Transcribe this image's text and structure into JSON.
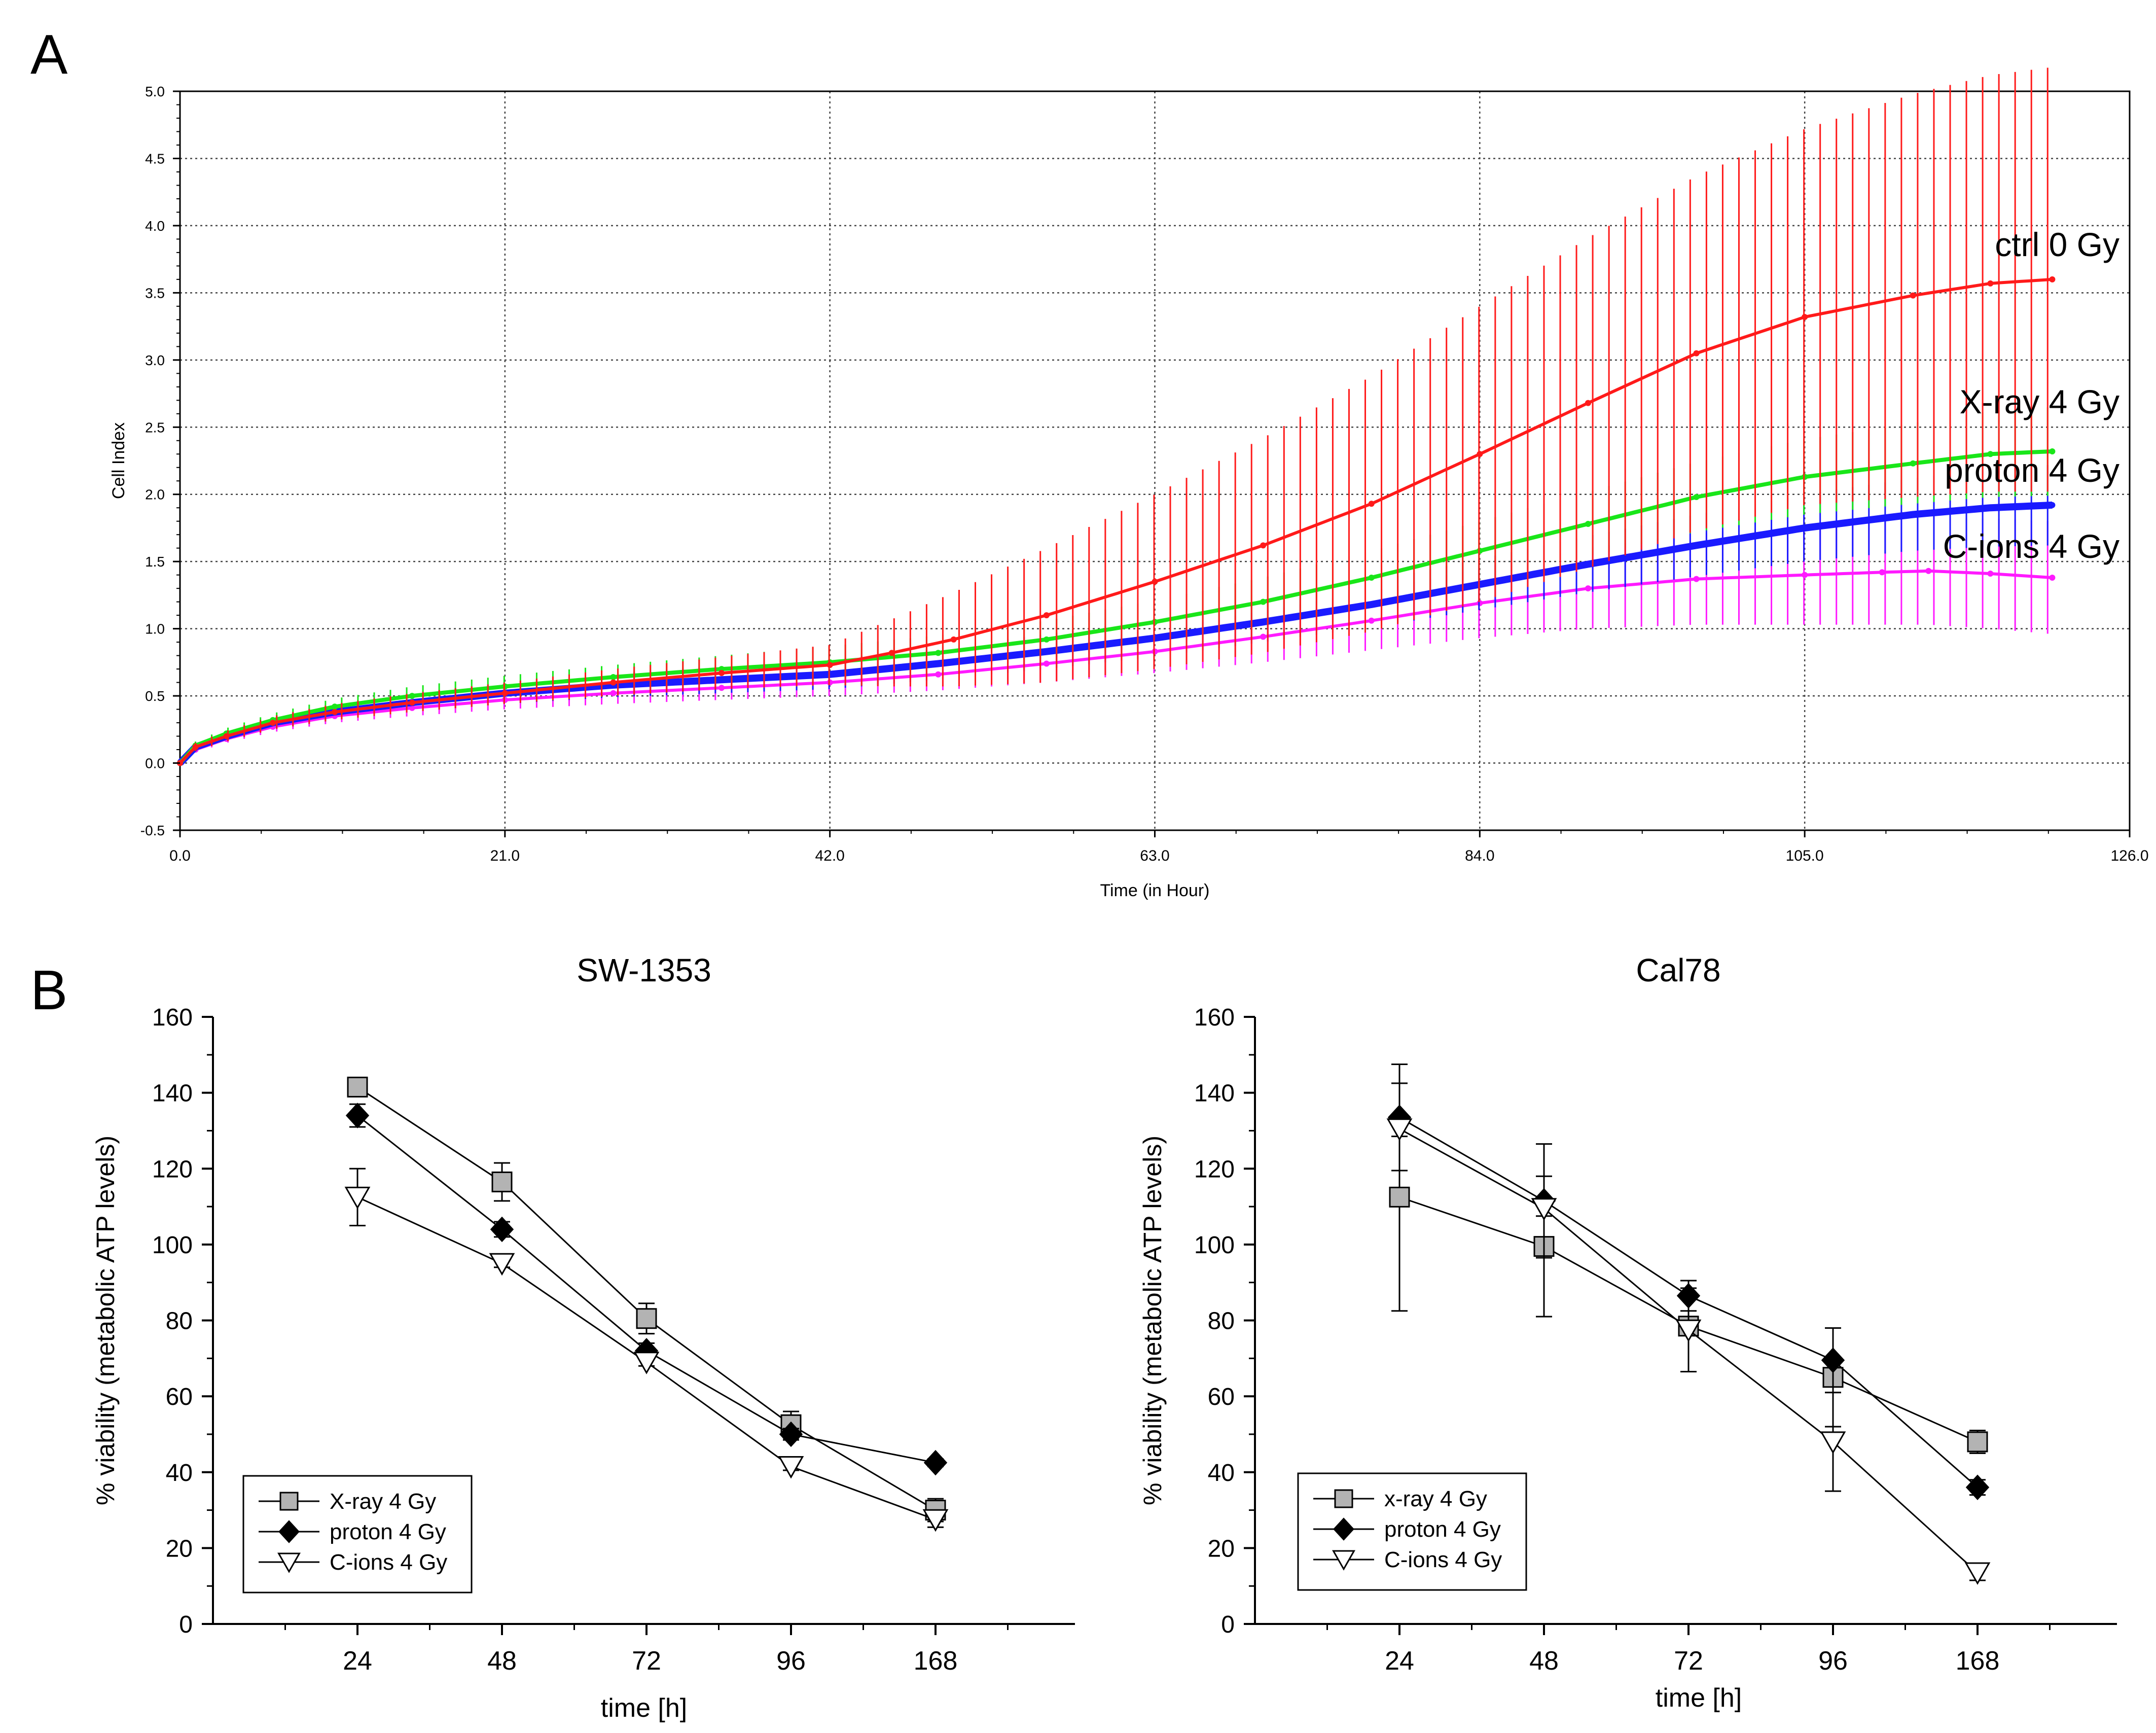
{
  "figure": {
    "panel_a_label": "A",
    "panel_b_label": "B"
  },
  "colors": {
    "ctrl": "#ff1a1a",
    "xray": "#19e619",
    "proton": "#1a1aff",
    "cions": "#ff1aff",
    "grid": "#444444",
    "axis": "#000000"
  },
  "chart_data": [
    {
      "id": "panel-a",
      "type": "line",
      "title": "",
      "xlabel": "Time (in Hour)",
      "ylabel": "Cell Index",
      "xlim": [
        0,
        126
      ],
      "ylim": [
        -0.5,
        5.0
      ],
      "grid": true,
      "xticks": [
        0,
        21,
        42,
        63,
        84,
        105,
        126
      ],
      "xtick_labels": [
        "0.0",
        "21.0",
        "42.0",
        "63.0",
        "84.0",
        "105.0",
        "126.0"
      ],
      "yticks": [
        -0.5,
        0,
        0.5,
        1.0,
        1.5,
        2.0,
        2.5,
        3.0,
        3.5,
        4.0,
        4.5,
        5.0
      ],
      "ytick_labels": [
        "-0.5",
        "0.0",
        "0.5",
        "1.0",
        "1.5",
        "2.0",
        "2.5",
        "3.0",
        "3.5",
        "4.0",
        "4.5",
        "5.0"
      ],
      "series": [
        {
          "name": "ctrl 0 Gy",
          "color_key": "ctrl",
          "x": [
            0,
            1,
            3,
            6,
            10,
            15,
            21,
            28,
            35,
            42,
            46,
            50,
            56,
            63,
            70,
            77,
            84,
            91,
            98,
            105,
            112,
            117,
            121
          ],
          "y": [
            0.0,
            0.12,
            0.2,
            0.3,
            0.38,
            0.45,
            0.52,
            0.6,
            0.67,
            0.73,
            0.82,
            0.92,
            1.1,
            1.35,
            1.62,
            1.93,
            2.3,
            2.68,
            3.05,
            3.32,
            3.48,
            3.57,
            3.6
          ],
          "err": [
            0,
            0.03,
            0.04,
            0.05,
            0.06,
            0.07,
            0.08,
            0.1,
            0.12,
            0.15,
            0.25,
            0.35,
            0.5,
            0.65,
            0.8,
            0.95,
            1.1,
            1.23,
            1.32,
            1.4,
            1.5,
            1.55,
            1.58
          ]
        },
        {
          "name": "X-ray 4 Gy",
          "color_key": "xray",
          "x": [
            0,
            1,
            3,
            6,
            10,
            15,
            21,
            28,
            35,
            42,
            49,
            56,
            63,
            70,
            77,
            84,
            91,
            98,
            105,
            112,
            117,
            121
          ],
          "y": [
            0.0,
            0.13,
            0.22,
            0.32,
            0.42,
            0.5,
            0.57,
            0.64,
            0.7,
            0.75,
            0.82,
            0.92,
            1.05,
            1.2,
            1.38,
            1.58,
            1.78,
            1.98,
            2.13,
            2.23,
            2.3,
            2.32
          ],
          "err": [
            0,
            0.03,
            0.04,
            0.05,
            0.06,
            0.07,
            0.08,
            0.09,
            0.1,
            0.12,
            0.13,
            0.14,
            0.16,
            0.18,
            0.2,
            0.22,
            0.24,
            0.26,
            0.28,
            0.3,
            0.32,
            0.33
          ]
        },
        {
          "name": "proton 4 Gy",
          "color_key": "proton",
          "x": [
            0,
            1,
            3,
            6,
            10,
            15,
            21,
            28,
            35,
            42,
            49,
            56,
            63,
            70,
            77,
            84,
            91,
            98,
            105,
            112,
            117,
            121
          ],
          "y": [
            0.0,
            0.12,
            0.2,
            0.3,
            0.38,
            0.45,
            0.52,
            0.58,
            0.62,
            0.66,
            0.74,
            0.83,
            0.93,
            1.05,
            1.18,
            1.33,
            1.48,
            1.62,
            1.75,
            1.85,
            1.9,
            1.92
          ],
          "err": [
            0,
            0.03,
            0.04,
            0.05,
            0.06,
            0.07,
            0.08,
            0.09,
            0.1,
            0.11,
            0.12,
            0.13,
            0.14,
            0.15,
            0.17,
            0.19,
            0.21,
            0.23,
            0.25,
            0.27,
            0.29,
            0.3
          ]
        },
        {
          "name": "C-ions 4 Gy",
          "color_key": "cions",
          "x": [
            0,
            1,
            3,
            6,
            10,
            15,
            21,
            28,
            35,
            42,
            49,
            56,
            63,
            70,
            77,
            84,
            91,
            98,
            105,
            110,
            113,
            117,
            121
          ],
          "y": [
            0.0,
            0.1,
            0.18,
            0.27,
            0.35,
            0.41,
            0.47,
            0.52,
            0.56,
            0.6,
            0.66,
            0.74,
            0.83,
            0.94,
            1.06,
            1.19,
            1.3,
            1.37,
            1.4,
            1.42,
            1.43,
            1.41,
            1.38
          ],
          "err": [
            0,
            0.02,
            0.03,
            0.04,
            0.05,
            0.06,
            0.07,
            0.08,
            0.09,
            0.1,
            0.12,
            0.14,
            0.16,
            0.19,
            0.22,
            0.26,
            0.3,
            0.34,
            0.37,
            0.39,
            0.4,
            0.41,
            0.42
          ]
        }
      ]
    },
    {
      "id": "panel-b-left",
      "type": "line",
      "title": "SW-1353",
      "xlabel": "time [h]",
      "ylabel": "% viability (metabolic ATP levels)",
      "categories": [
        "24",
        "48",
        "72",
        "96",
        "168"
      ],
      "ylim": [
        0,
        160
      ],
      "yticks": [
        0,
        20,
        40,
        60,
        80,
        100,
        120,
        140,
        160
      ],
      "legend": "bottom-left",
      "series": [
        {
          "name": "X-ray 4 Gy",
          "marker": "square",
          "values": [
            141.5,
            116.5,
            80.5,
            52.5,
            30
          ],
          "err": [
            2,
            5,
            4,
            3.5,
            3
          ]
        },
        {
          "name": "proton 4 Gy",
          "marker": "diamond",
          "values": [
            134,
            104,
            72,
            50,
            42.5
          ],
          "err": [
            3,
            2,
            2,
            1.5,
            1
          ]
        },
        {
          "name": "C-ions 4 Gy",
          "marker": "triangle-down",
          "values": [
            112.5,
            95,
            69,
            41.5,
            27.5
          ],
          "err": [
            7.5,
            1,
            1,
            1,
            2
          ]
        }
      ]
    },
    {
      "id": "panel-b-right",
      "type": "line",
      "title": "Cal78",
      "xlabel": "time [h]",
      "ylabel": "% viability (metabolic ATP levels)",
      "categories": [
        "24",
        "48",
        "72",
        "96",
        "168"
      ],
      "ylim": [
        0,
        160
      ],
      "yticks": [
        0,
        20,
        40,
        60,
        80,
        100,
        120,
        140,
        160
      ],
      "legend": "bottom-left",
      "series": [
        {
          "name": "x-ray 4 Gy",
          "marker": "square",
          "values": [
            112.5,
            99.5,
            78.5,
            65,
            48
          ],
          "err": [
            30,
            18.5,
            12,
            13,
            3
          ]
        },
        {
          "name": "proton 4 Gy",
          "marker": "diamond",
          "values": [
            133.5,
            111.5,
            86.5,
            69.5,
            36
          ],
          "err": [
            14,
            15,
            4,
            8.5,
            2
          ]
        },
        {
          "name": "C-ions 4 Gy",
          "marker": "triangle-down",
          "values": [
            130.5,
            109.5,
            77.5,
            48,
            13.5
          ],
          "err": [
            2,
            2,
            11,
            13,
            2
          ]
        }
      ]
    }
  ]
}
